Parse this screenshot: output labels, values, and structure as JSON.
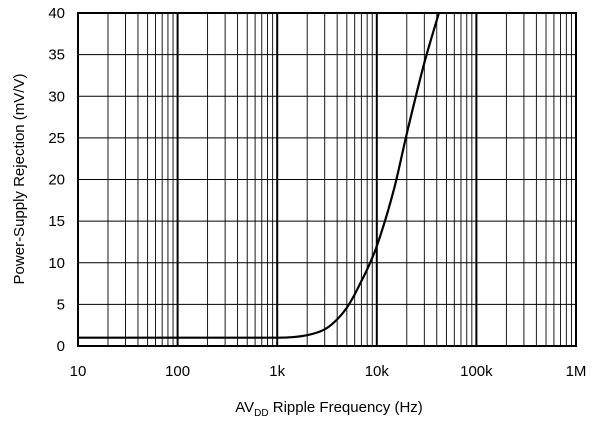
{
  "chart_data": {
    "type": "line",
    "title": "",
    "xlabel": {
      "prefix": "AV",
      "subscript": "DD",
      "suffix": " Ripple Frequency (Hz)"
    },
    "ylabel": "Power-Supply Rejection (mV/V)",
    "x_scale": "log",
    "xlim": [
      10,
      1000000
    ],
    "ylim": [
      0,
      40
    ],
    "x_ticks": [
      {
        "value": 10,
        "label": "10"
      },
      {
        "value": 100,
        "label": "100"
      },
      {
        "value": 1000,
        "label": "1k"
      },
      {
        "value": 10000,
        "label": "10k"
      },
      {
        "value": 100000,
        "label": "100k"
      },
      {
        "value": 1000000,
        "label": "1M"
      }
    ],
    "y_ticks": [
      0,
      5,
      10,
      15,
      20,
      25,
      30,
      35,
      40
    ],
    "grid": true,
    "line_color": "#000000",
    "series": [
      {
        "name": "",
        "x": [
          10,
          100,
          1000,
          2000,
          3000,
          4000,
          5000,
          6000,
          7000,
          8000,
          10000,
          15000,
          20000,
          30000,
          42000
        ],
        "y": [
          1,
          1,
          1,
          1.3,
          2,
          3.2,
          4.6,
          6.2,
          7.8,
          9.2,
          12,
          19,
          25.5,
          34,
          40
        ]
      }
    ]
  }
}
